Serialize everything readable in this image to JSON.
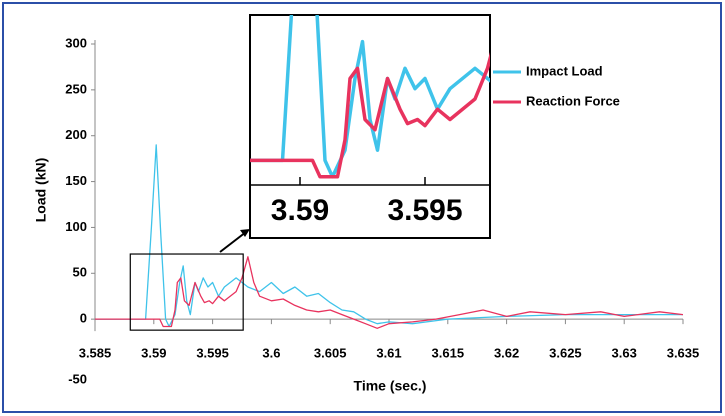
{
  "chart_data": {
    "type": "line",
    "xlabel": "Time (sec.)",
    "ylabel": "Load (kN)",
    "xlim": [
      3.585,
      3.635
    ],
    "xticks": [
      3.585,
      3.59,
      3.595,
      3.6,
      3.605,
      3.61,
      3.615,
      3.62,
      3.625,
      3.63,
      3.635
    ],
    "ylim": [
      -50,
      300
    ],
    "yticks": [
      -50,
      0,
      50,
      100,
      150,
      200,
      250,
      300
    ],
    "legend": "upper right",
    "series": [
      {
        "name": "Impact Load",
        "color": "#3fc3ea",
        "x": [
          3.585,
          3.5893,
          3.5898,
          3.5902,
          3.5906,
          3.591,
          3.5913,
          3.5918,
          3.5922,
          3.5925,
          3.5928,
          3.5931,
          3.5935,
          3.5938,
          3.5942,
          3.5946,
          3.595,
          3.5955,
          3.596,
          3.597,
          3.598,
          3.599,
          3.6,
          3.601,
          3.602,
          3.603,
          3.604,
          3.605,
          3.606,
          3.607,
          3.608,
          3.609,
          3.61,
          3.612,
          3.615,
          3.62,
          3.625,
          3.63,
          3.635
        ],
        "values": [
          0,
          0,
          100,
          190,
          90,
          0,
          -8,
          5,
          40,
          58,
          20,
          5,
          40,
          30,
          45,
          35,
          40,
          25,
          35,
          45,
          35,
          30,
          40,
          28,
          35,
          25,
          28,
          18,
          10,
          8,
          0,
          -5,
          -3,
          -5,
          0,
          3,
          5,
          5,
          5
        ]
      },
      {
        "name": "Reaction Force",
        "color": "#e8335e",
        "x": [
          3.585,
          3.5905,
          3.5908,
          3.5915,
          3.5918,
          3.592,
          3.5923,
          3.5926,
          3.593,
          3.5935,
          3.594,
          3.5943,
          3.5947,
          3.595,
          3.5955,
          3.596,
          3.597,
          3.5975,
          3.598,
          3.5985,
          3.599,
          3.6,
          3.601,
          3.602,
          3.603,
          3.604,
          3.605,
          3.606,
          3.607,
          3.608,
          3.609,
          3.61,
          3.612,
          3.614,
          3.616,
          3.618,
          3.62,
          3.622,
          3.625,
          3.628,
          3.63,
          3.633,
          3.635
        ],
        "values": [
          0,
          0,
          -8,
          -8,
          10,
          40,
          45,
          20,
          15,
          40,
          25,
          18,
          20,
          17,
          25,
          20,
          30,
          45,
          68,
          40,
          25,
          20,
          22,
          15,
          10,
          8,
          10,
          5,
          0,
          -5,
          -10,
          -5,
          -3,
          0,
          5,
          10,
          3,
          8,
          5,
          8,
          3,
          8,
          5
        ]
      }
    ],
    "inset": {
      "xlim": [
        3.588,
        3.5976
      ],
      "ylim": [
        -12,
        71
      ],
      "xticks": [
        3.59,
        3.595
      ]
    }
  }
}
